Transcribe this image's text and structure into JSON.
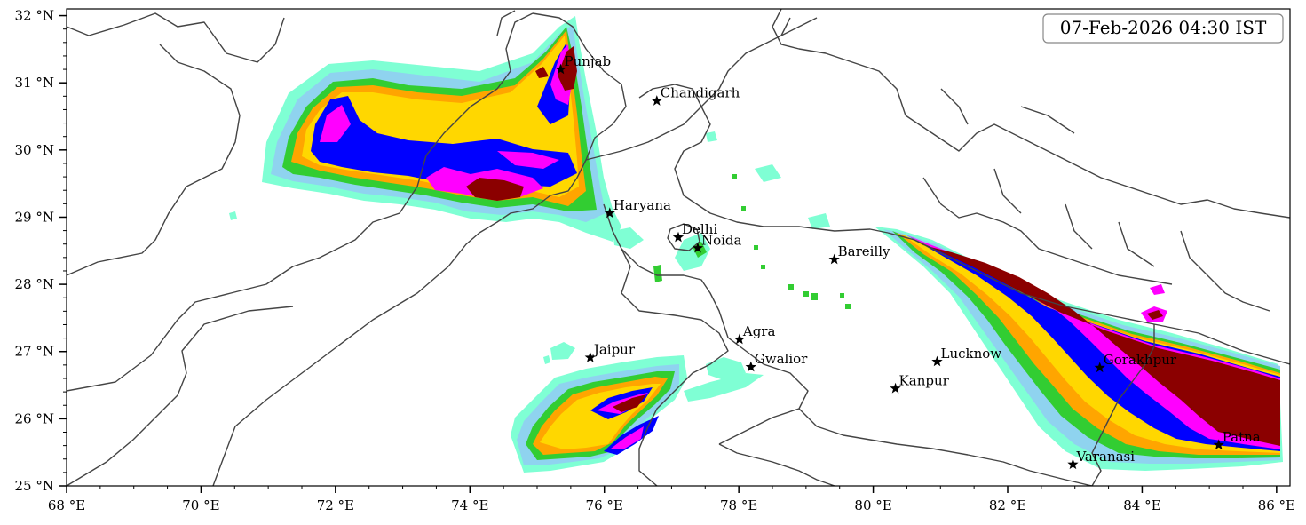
{
  "map": {
    "timestamp": "07-Feb-2026 04:30 IST",
    "lon_range": [
      68,
      86.2
    ],
    "lat_range": [
      25,
      32.1
    ],
    "x_ticks": [
      {
        "value": 68,
        "label": "68 °E"
      },
      {
        "value": 70,
        "label": "70 °E"
      },
      {
        "value": 72,
        "label": "72 °E"
      },
      {
        "value": 74,
        "label": "74 °E"
      },
      {
        "value": 76,
        "label": "76 °E"
      },
      {
        "value": 78,
        "label": "78 °E"
      },
      {
        "value": 80,
        "label": "80 °E"
      },
      {
        "value": 82,
        "label": "82 °E"
      },
      {
        "value": 84,
        "label": "84 °E"
      },
      {
        "value": 86,
        "label": "86 °E"
      }
    ],
    "y_ticks": [
      {
        "value": 25,
        "label": "25 °N"
      },
      {
        "value": 26,
        "label": "26 °N"
      },
      {
        "value": 27,
        "label": "27 °N"
      },
      {
        "value": 28,
        "label": "28 °N"
      },
      {
        "value": 29,
        "label": "29 °N"
      },
      {
        "value": 30,
        "label": "30 °N"
      },
      {
        "value": 31,
        "label": "31 °N"
      },
      {
        "value": 32,
        "label": "32 °N"
      }
    ],
    "cities": [
      {
        "name": "Punjab",
        "lon": 75.35,
        "lat": 31.2
      },
      {
        "name": "Chandigarh",
        "lon": 76.78,
        "lat": 30.73
      },
      {
        "name": "Haryana",
        "lon": 76.08,
        "lat": 29.06
      },
      {
        "name": "Delhi",
        "lon": 77.1,
        "lat": 28.7
      },
      {
        "name": "Noida",
        "lon": 77.39,
        "lat": 28.54
      },
      {
        "name": "Bareilly",
        "lon": 79.42,
        "lat": 28.37
      },
      {
        "name": "Agra",
        "lon": 78.01,
        "lat": 27.18
      },
      {
        "name": "Jaipur",
        "lon": 75.79,
        "lat": 26.91
      },
      {
        "name": "Gwalior",
        "lon": 78.18,
        "lat": 26.77
      },
      {
        "name": "Lucknow",
        "lon": 80.95,
        "lat": 26.85
      },
      {
        "name": "Kanpur",
        "lon": 80.33,
        "lat": 26.45
      },
      {
        "name": "Gorakhpur",
        "lon": 83.37,
        "lat": 26.76
      },
      {
        "name": "Varanasi",
        "lon": 82.97,
        "lat": 25.32
      },
      {
        "name": "Patna",
        "lon": 85.14,
        "lat": 25.61
      }
    ],
    "colors": {
      "level1": "#7fffd4",
      "level2": "#8fd3ef",
      "level3": "#32cd32",
      "level4": "#ffa500",
      "level5": "#ffd700",
      "level6": "#0000ff",
      "level7": "#ff00ff",
      "level8": "#8b0000",
      "borders": "#444444"
    }
  }
}
